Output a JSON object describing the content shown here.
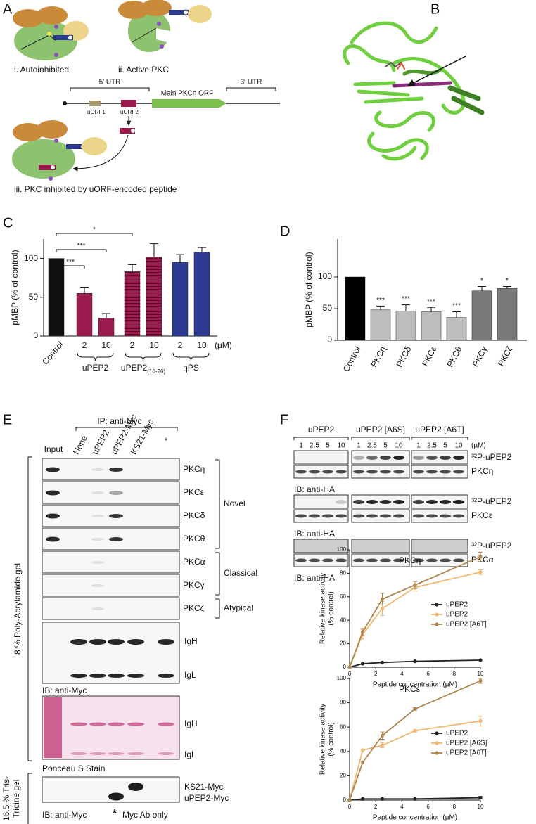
{
  "panel_letters": [
    "A",
    "B",
    "C",
    "D",
    "E",
    "F"
  ],
  "diagram_a": {
    "states": [
      "i. Autoinhibited",
      "ii. Active PKC",
      "iii. PKC inhibited by uORF-encoded peptide"
    ],
    "utr5": "5′ UTR",
    "utr3": "3′ UTR",
    "uorf1": "uORF1",
    "uorf2": "uORF2",
    "main_orf": "Main PKCη ORF"
  },
  "blot_e": {
    "ip": "IP: anti-Myc",
    "lanes": [
      "Input",
      "None",
      "uPEP2",
      "uPEP2-Myc",
      "KS21-Myc",
      "*"
    ],
    "rows": [
      "PKCη",
      "PKCε",
      "PKCδ",
      "PKCθ",
      "PKCα",
      "PKCγ",
      "PKCζ"
    ],
    "classes": [
      "Novel",
      "Classical",
      "Atypical"
    ],
    "ig": [
      "IgH",
      "IgL"
    ],
    "ib_myc": "IB: anti-Myc",
    "ponceau": "Ponceau S Stain",
    "gel_8": "8 % Poly-Acrylamide gel",
    "gel_16": [
      "16.5 % Tris-",
      "Tricine gel"
    ],
    "tricine_bands": [
      "KS21-Myc",
      "uPEP2-Myc"
    ],
    "star": "*",
    "myc_ab_only": "Myc Ab only"
  },
  "blot_f": {
    "groups": [
      "uPEP2",
      "uPEP2 [A6S]",
      "uPEP2 [A6T]"
    ],
    "concentrations": [
      1,
      2.5,
      5,
      10
    ],
    "unit": "(µM)",
    "sets": [
      {
        "top": "³²P-uPEP2",
        "bottom": "PKCη",
        "ib": "IB: anti-HA"
      },
      {
        "top": "³²P-uPEP2",
        "bottom": "PKCε",
        "ib": "IB: anti-HA"
      },
      {
        "top": "³²P-uPEP2",
        "bottom": "PKCα",
        "ib": "IB: anti-HA"
      }
    ]
  },
  "chart_data": [
    {
      "type": "bar",
      "y_label": "pMBP (% of control)",
      "categories": [
        "Control",
        "2",
        "10",
        "2",
        "10",
        "2",
        "10"
      ],
      "unit": "(µM)",
      "groups": [
        {
          "name": "uPEP2"
        },
        {
          "name": "uPEP2",
          "subscript": "(10-26)"
        },
        {
          "name": "ηPS"
        }
      ],
      "values": [
        100,
        55,
        23,
        83,
        102,
        95,
        108
      ],
      "errors": [
        null,
        8,
        6,
        9,
        17,
        10,
        6
      ],
      "colors": [
        "#111111",
        "#9b1b4f",
        "#9b1b4f",
        "#9b1b4f",
        "#9b1b4f",
        "#2b3990",
        "#2b3990"
      ],
      "hatched": [
        false,
        false,
        false,
        true,
        true,
        false,
        false
      ],
      "significance": [
        {
          "label": "*",
          "from": 0,
          "to": 3
        },
        {
          "label": "***",
          "from": 0,
          "to": 2
        },
        {
          "label": "***",
          "from": 0,
          "to": 1
        }
      ],
      "ylim": [
        0,
        125
      ],
      "yticks": [
        0,
        50,
        100
      ]
    },
    {
      "type": "bar",
      "y_label": "pMBP (% of control)",
      "categories": [
        "Control",
        "PKCη",
        "PKCδ",
        "PKCε",
        "PKCθ",
        "PKCγ",
        "PKCζ"
      ],
      "values": [
        100,
        48,
        46,
        45,
        36,
        78,
        82
      ],
      "errors": [
        null,
        6,
        10,
        7,
        9,
        7,
        3
      ],
      "colors": [
        "#000000",
        "#bdbdbd",
        "#bdbdbd",
        "#bdbdbd",
        "#bdbdbd",
        "#7a7a7a",
        "#7a7a7a"
      ],
      "significance": [
        null,
        "***",
        "***",
        "***",
        "***",
        "*",
        "*"
      ],
      "ylim": [
        0,
        160
      ],
      "yticks": [
        0,
        50,
        100
      ]
    },
    {
      "type": "line",
      "title": "PKCη",
      "x_label": "Peptide concentration (µM)",
      "y_label": [
        "Relative kinase activity",
        "(% control)"
      ],
      "x": [
        0,
        1,
        2.5,
        5,
        10
      ],
      "series": [
        {
          "name": "uPEP2",
          "color": "#222222",
          "values": [
            0,
            3,
            4,
            5,
            6
          ]
        },
        {
          "name": "uPEP2",
          "color": "#f2b872",
          "values": [
            0,
            28,
            50,
            68,
            81
          ],
          "errors": [
            null,
            4,
            6,
            3,
            2
          ]
        },
        {
          "name": "uPEP2 [A6T]",
          "color": "#b0864f",
          "values": [
            0,
            30,
            58,
            70,
            94
          ],
          "errors": [
            null,
            3,
            5,
            3,
            4
          ]
        }
      ],
      "xlim": [
        0,
        10
      ],
      "xticks": [
        0,
        2,
        4,
        6,
        8,
        10
      ],
      "ylim": [
        0,
        100
      ],
      "yticks": [
        0,
        20,
        40,
        60,
        80,
        100
      ],
      "legend": "right"
    },
    {
      "type": "line",
      "title": "PKCε",
      "x_label": "Peptide concentration (µM)",
      "y_label": [
        "Relative kinase activity",
        "(% control)"
      ],
      "x": [
        0,
        1,
        2.5,
        5,
        10
      ],
      "series": [
        {
          "name": "uPEP2",
          "color": "#222222",
          "values": [
            0,
            1,
            1,
            1,
            2
          ],
          "errors": [
            null,
            null,
            null,
            null,
            1
          ]
        },
        {
          "name": "uPEP2 [A6S]",
          "color": "#f2b872",
          "values": [
            0,
            41,
            45,
            57,
            65
          ],
          "errors": [
            null,
            null,
            2,
            1,
            4
          ]
        },
        {
          "name": "uPEP2 [A6T]",
          "color": "#b0864f",
          "values": [
            0,
            31,
            53,
            75,
            98
          ],
          "errors": [
            null,
            null,
            3,
            1,
            2
          ]
        }
      ],
      "xlim": [
        0,
        10
      ],
      "xticks": [
        0,
        2,
        4,
        6,
        8,
        10
      ],
      "ylim": [
        0,
        100
      ],
      "yticks": [
        0,
        20,
        40,
        60,
        80,
        100
      ],
      "legend": "right"
    }
  ]
}
